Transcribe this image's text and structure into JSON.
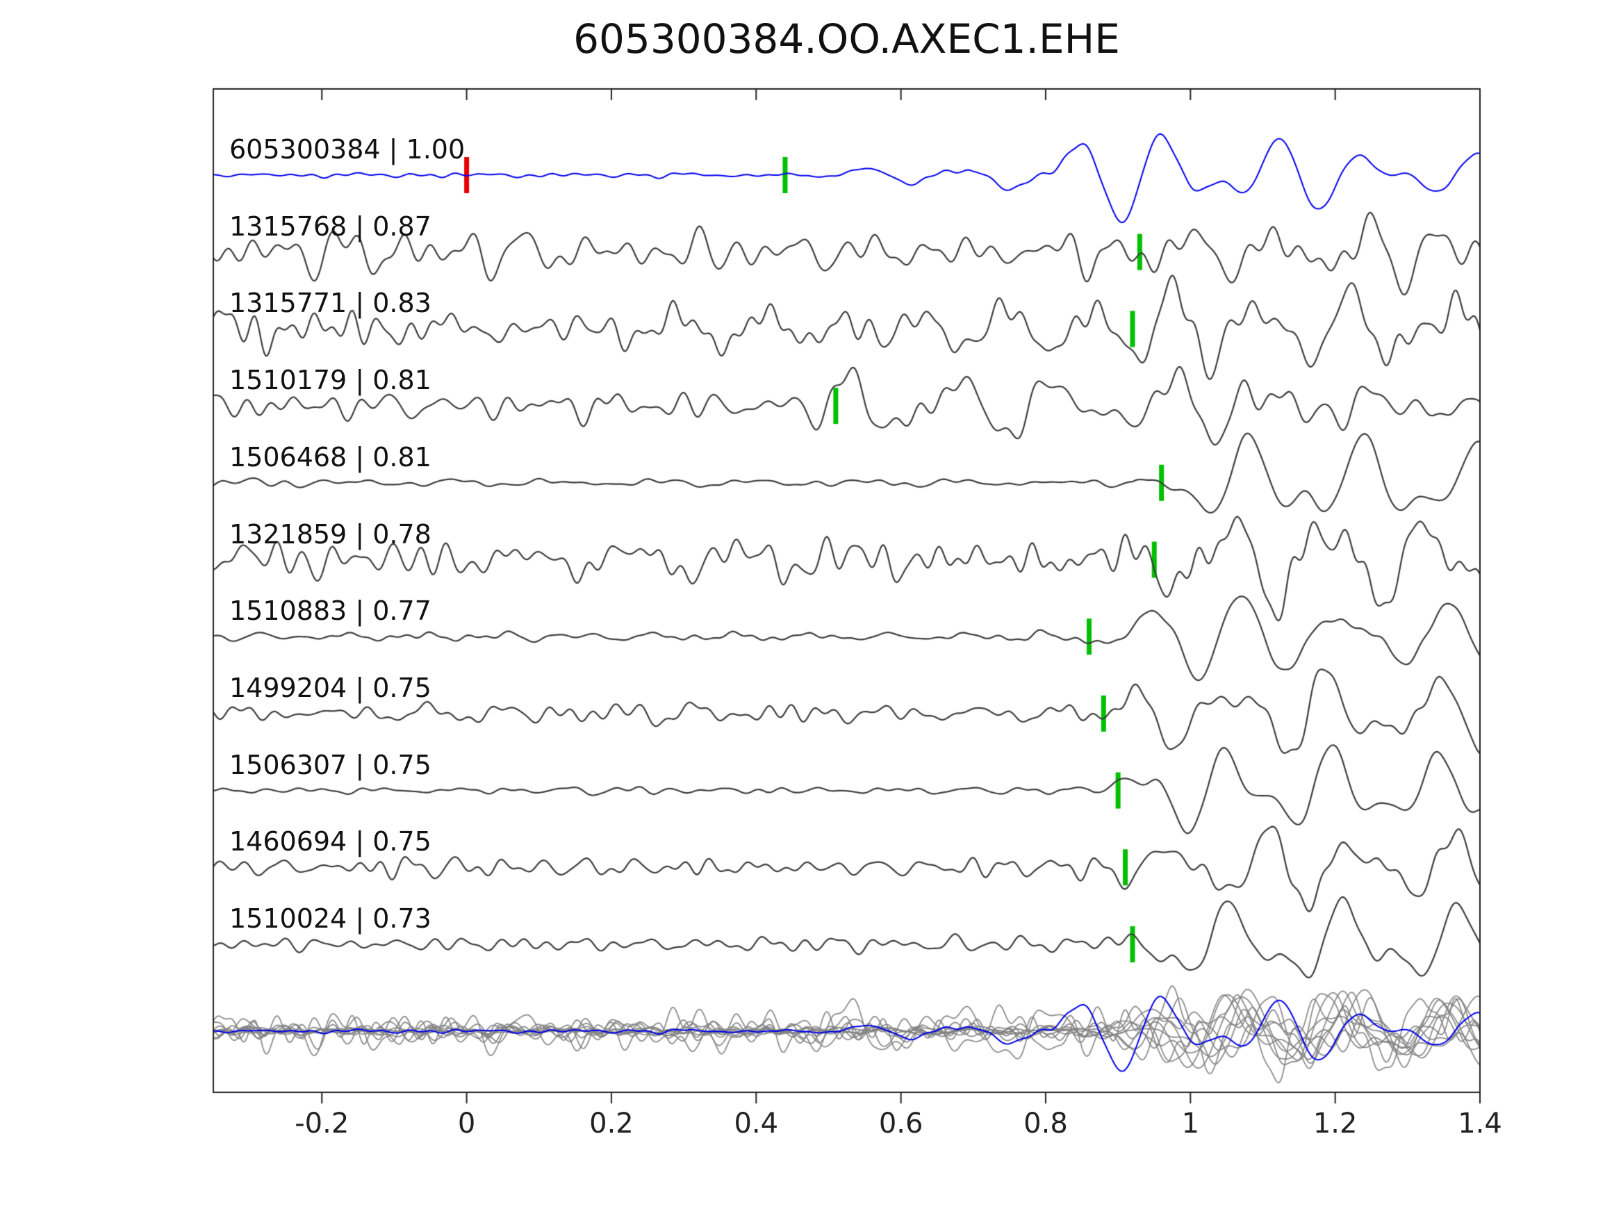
{
  "title": "605300384.OO.AXEC1.EHE",
  "chart_data": {
    "type": "line",
    "title": "605300384.OO.AXEC1.EHE",
    "xlabel": "",
    "ylabel": "",
    "x_range": [
      -0.35,
      1.4
    ],
    "x_ticks": [
      -0.2,
      0,
      0.2,
      0.4,
      0.6,
      0.8,
      1,
      1.2,
      1.4
    ],
    "x_tick_labels": [
      "-0.2",
      "0",
      "0.2",
      "0.4",
      "0.6",
      "0.8",
      "1",
      "1.2",
      "1.4"
    ],
    "grid": false,
    "legend": false,
    "colors": {
      "template_trace": "#0000ee",
      "detection_trace": "#3d3d3d",
      "overlay_trace": "#8c8c8c",
      "pick_marker": "#00c000",
      "reference_marker": "#e60000",
      "frame": "#222222",
      "background": "#ffffff"
    },
    "traces": [
      {
        "id": "605300384",
        "score": "1.00",
        "label": "605300384 | 1.00",
        "is_template": true,
        "pick": 0.44,
        "reference_time": 0.0,
        "waveform": {
          "noise_level": 0.06,
          "bursts": [
            {
              "t": 0.45,
              "amp": 0.22
            },
            {
              "t": 0.7,
              "amp": 1.0
            }
          ]
        }
      },
      {
        "id": "1315768",
        "score": "0.87",
        "label": "1315768 | 0.87",
        "is_template": false,
        "pick": 0.93,
        "waveform": {
          "noise_level": 0.55,
          "bursts": [
            {
              "t": 0.88,
              "amp": 0.85
            }
          ]
        }
      },
      {
        "id": "1315771",
        "score": "0.83",
        "label": "1315771 | 0.83",
        "is_template": false,
        "pick": 0.92,
        "waveform": {
          "noise_level": 0.55,
          "bursts": [
            {
              "t": 0.86,
              "amp": 0.9
            }
          ]
        }
      },
      {
        "id": "1510179",
        "score": "0.81",
        "label": "1510179 | 0.81",
        "is_template": false,
        "pick": 0.51,
        "waveform": {
          "noise_level": 0.42,
          "bursts": [
            {
              "t": 0.45,
              "amp": 0.85
            }
          ]
        }
      },
      {
        "id": "1506468",
        "score": "0.81",
        "label": "1506468 | 0.81",
        "is_template": false,
        "pick": 0.96,
        "waveform": {
          "noise_level": 0.1,
          "bursts": [
            {
              "t": 0.92,
              "amp": 1.1
            }
          ]
        }
      },
      {
        "id": "1321859",
        "score": "0.78",
        "label": "1321859 | 0.78",
        "is_template": false,
        "pick": 0.95,
        "waveform": {
          "noise_level": 0.55,
          "bursts": [
            {
              "t": 0.9,
              "amp": 0.85
            }
          ]
        }
      },
      {
        "id": "1510883",
        "score": "0.77",
        "label": "1510883 | 0.77",
        "is_template": false,
        "pick": 0.86,
        "waveform": {
          "noise_level": 0.13,
          "bursts": [
            {
              "t": 0.83,
              "amp": 1.05
            }
          ]
        }
      },
      {
        "id": "1499204",
        "score": "0.75",
        "label": "1499204 | 0.75",
        "is_template": false,
        "pick": 0.88,
        "waveform": {
          "noise_level": 0.3,
          "bursts": [
            {
              "t": 0.85,
              "amp": 0.95
            }
          ]
        }
      },
      {
        "id": "1506307",
        "score": "0.75",
        "label": "1506307 | 0.75",
        "is_template": false,
        "pick": 0.9,
        "waveform": {
          "noise_level": 0.1,
          "bursts": [
            {
              "t": 0.86,
              "amp": 1.05
            }
          ]
        }
      },
      {
        "id": "1460694",
        "score": "0.75",
        "label": "1460694 | 0.75",
        "is_template": false,
        "pick": 0.91,
        "waveform": {
          "noise_level": 0.25,
          "bursts": [
            {
              "t": 0.87,
              "amp": 0.95
            }
          ]
        }
      },
      {
        "id": "1510024",
        "score": "0.73",
        "label": "1510024 | 0.73",
        "is_template": false,
        "pick": 0.92,
        "waveform": {
          "noise_level": 0.18,
          "bursts": [
            {
              "t": 0.88,
              "amp": 1.05
            }
          ]
        }
      }
    ],
    "overlay_row": {
      "description": "all detection traces overplotted in gray with the blue template on top",
      "includes_template": true
    }
  }
}
